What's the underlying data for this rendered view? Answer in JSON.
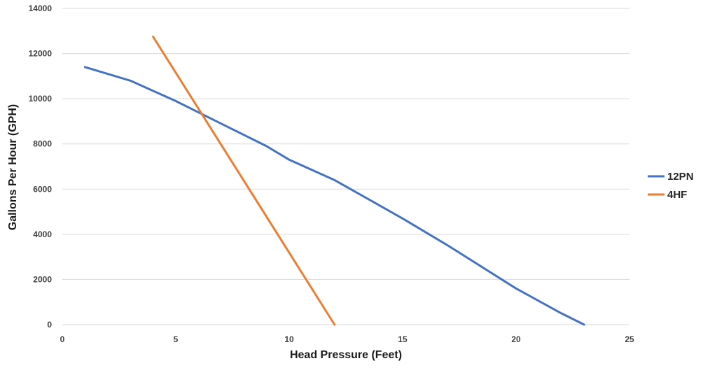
{
  "chart_data": {
    "type": "line",
    "title": "",
    "xlabel": "Head Pressure (Feet)",
    "ylabel": "Gallons Per Hour (GPH)",
    "xlim": [
      0,
      25
    ],
    "ylim": [
      0,
      14000
    ],
    "xticks": [
      0,
      5,
      10,
      15,
      20,
      25
    ],
    "yticks": [
      0,
      2000,
      4000,
      6000,
      8000,
      10000,
      12000,
      14000
    ],
    "grid": true,
    "legend_position": "right",
    "series": [
      {
        "name": "12PN",
        "color": "#4472C4",
        "x": [
          1,
          3,
          5,
          7,
          9,
          10,
          12,
          15,
          17,
          20,
          22,
          23
        ],
        "y": [
          11400,
          10800,
          9900,
          8900,
          7900,
          7300,
          6400,
          4700,
          3500,
          1600,
          500,
          0
        ]
      },
      {
        "name": "4HF",
        "color": "#ED7D31",
        "x": [
          4,
          12
        ],
        "y": [
          12750,
          0
        ]
      }
    ]
  }
}
